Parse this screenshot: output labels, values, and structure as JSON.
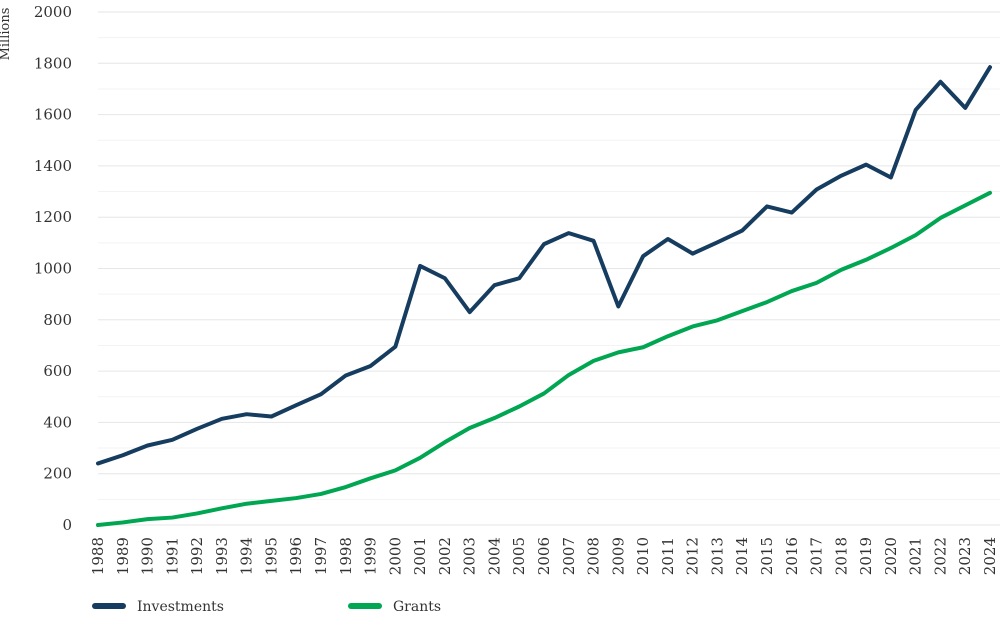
{
  "chart_data": {
    "type": "line",
    "title": "",
    "xlabel": "",
    "ylabel": "Millions",
    "ylim": [
      0,
      2000
    ],
    "yticks": [
      0,
      200,
      400,
      600,
      800,
      1000,
      1200,
      1400,
      1600,
      1800,
      2000
    ],
    "grid": true,
    "legend_position": "bottom-left",
    "categories": [
      "1988",
      "1989",
      "1990",
      "1991",
      "1992",
      "1993",
      "1994",
      "1995",
      "1996",
      "1997",
      "1998",
      "1999",
      "2000",
      "2001",
      "2002",
      "2003",
      "2004",
      "2005",
      "2006",
      "2007",
      "2008",
      "2009",
      "2010",
      "2011",
      "2012",
      "2013",
      "2014",
      "2015",
      "2016",
      "2017",
      "2018",
      "2019",
      "2020",
      "2021",
      "2022",
      "2023",
      "2024"
    ],
    "series": [
      {
        "name": "Investments",
        "color": "#163d5f",
        "values": [
          240,
          272,
          310,
          332,
          375,
          414,
          432,
          423,
          467,
          510,
          583,
          620,
          695,
          1010,
          962,
          830,
          935,
          962,
          1095,
          1138,
          1108,
          852,
          1048,
          1115,
          1058,
          1102,
          1148,
          1242,
          1218,
          1308,
          1362,
          1405,
          1355,
          1618,
          1728,
          1626,
          1785
        ]
      },
      {
        "name": "Grants",
        "color": "#00a651",
        "values": [
          0,
          10,
          23,
          29,
          45,
          65,
          83,
          94,
          105,
          121,
          148,
          182,
          213,
          262,
          323,
          378,
          417,
          462,
          513,
          585,
          640,
          673,
          693,
          736,
          774,
          798,
          834,
          869,
          912,
          944,
          995,
          1034,
          1080,
          1130,
          1197,
          1246,
          1295
        ]
      }
    ]
  }
}
